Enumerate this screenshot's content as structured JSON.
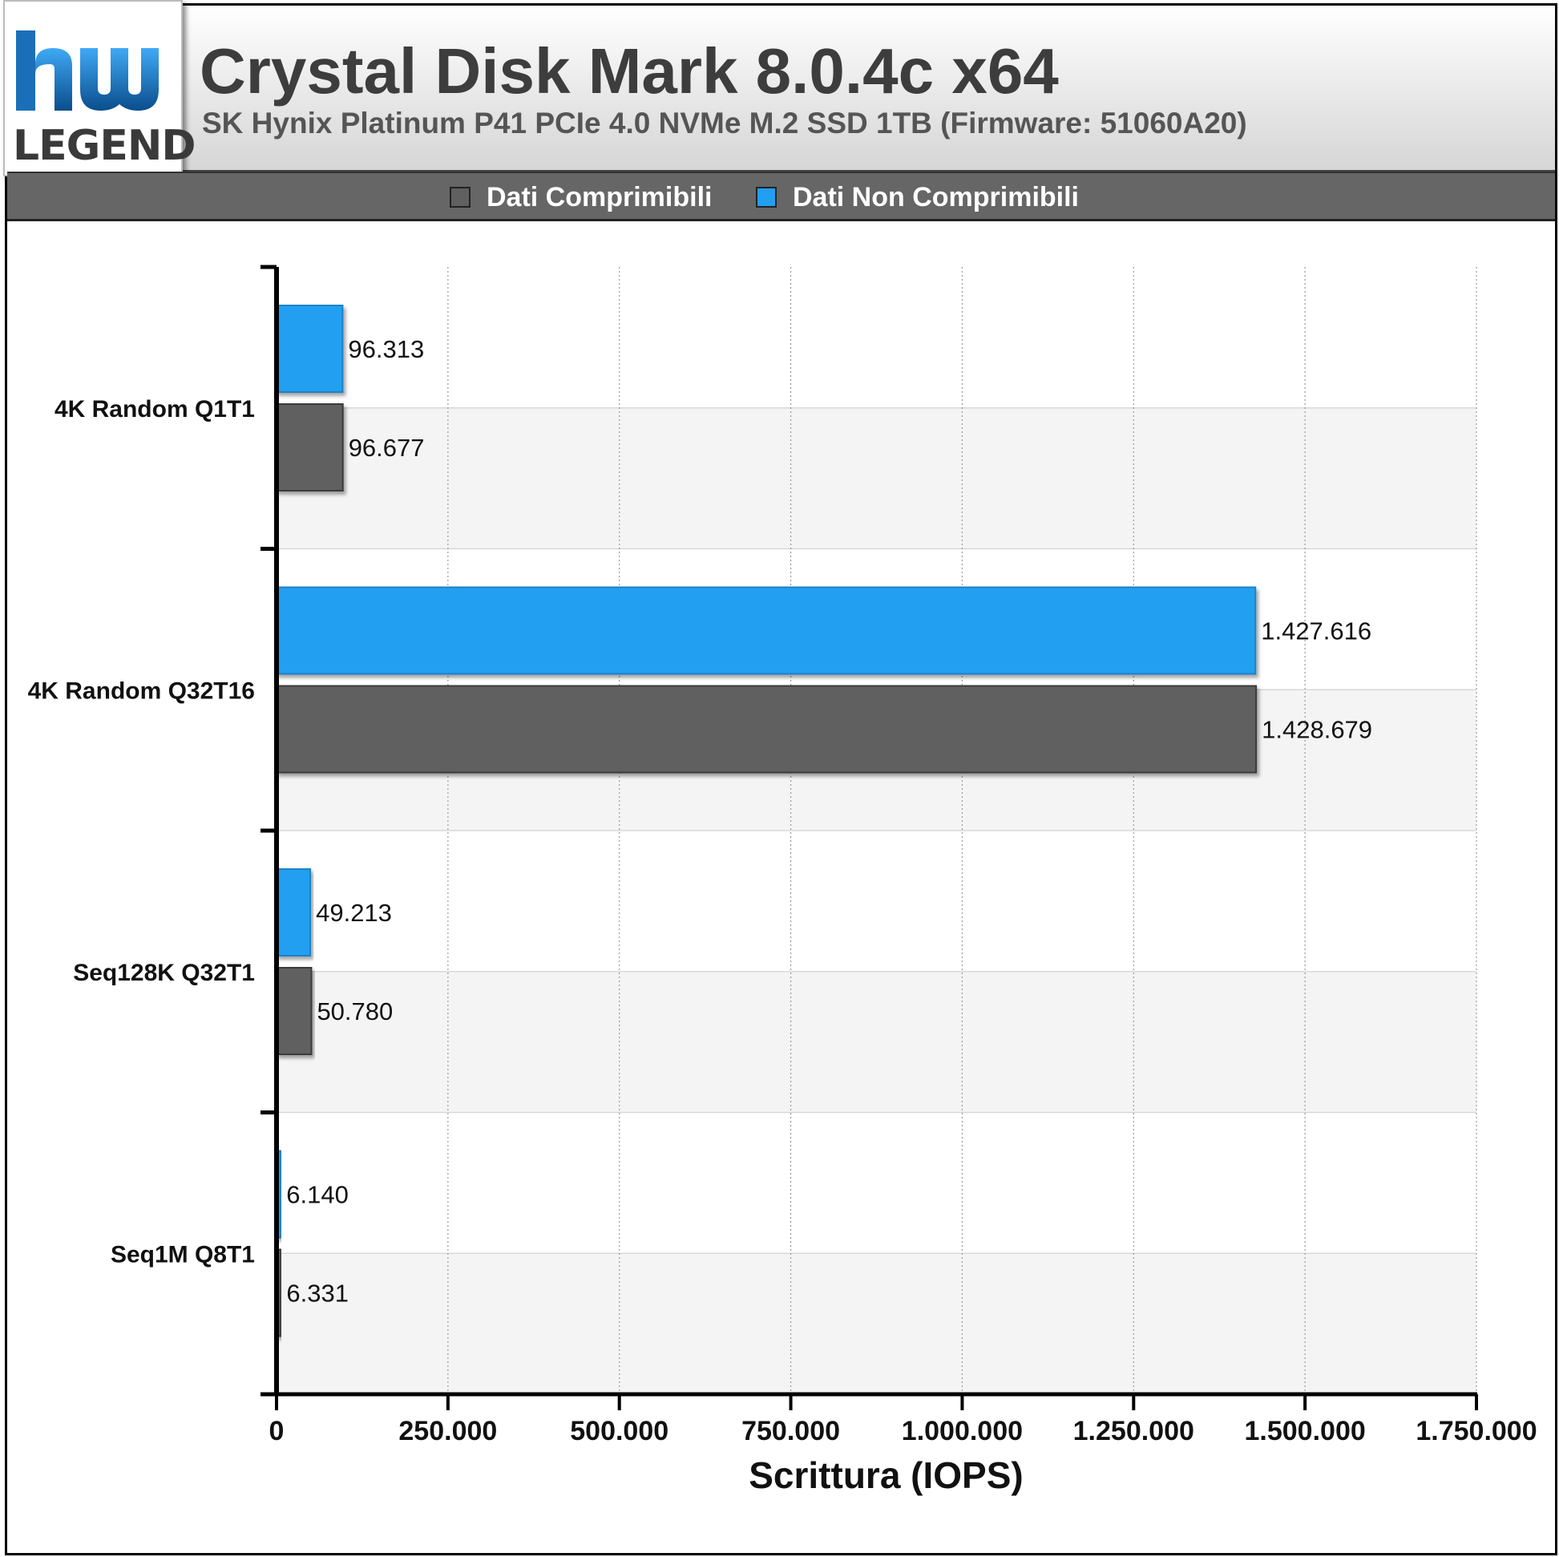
{
  "header": {
    "logo_text": "LEGEND",
    "title": "Crystal Disk Mark 8.0.4c x64",
    "subtitle": "SK Hynix Platinum P41 PCIe 4.0 NVMe M.2 SSD 1TB (Firmware: 51060A20)"
  },
  "legend": {
    "items": [
      {
        "label": "Dati Comprimibili",
        "color": "#606060"
      },
      {
        "label": "Dati Non Comprimibili",
        "color": "#219ff0"
      }
    ]
  },
  "chart_data": {
    "type": "bar",
    "orientation": "horizontal",
    "categories": [
      "4K Random Q1T1",
      "4K Random Q32T16",
      "Seq128K Q32T1",
      "Seq1M Q8T1"
    ],
    "series": [
      {
        "name": "Dati Non Comprimibili",
        "color": "#219ff0",
        "values": [
          96313,
          1427616,
          49213,
          6140
        ],
        "labels": [
          "96.313",
          "1.427.616",
          "49.213",
          "6.140"
        ]
      },
      {
        "name": "Dati Comprimibili",
        "color": "#606060",
        "values": [
          96677,
          1428679,
          50780,
          6331
        ],
        "labels": [
          "96.677",
          "1.428.679",
          "50.780",
          "6.331"
        ]
      }
    ],
    "xlim": [
      0,
      1750000
    ],
    "xticks": [
      0,
      250000,
      500000,
      750000,
      1000000,
      1250000,
      1500000,
      1750000
    ],
    "xtick_labels": [
      "0",
      "250.000",
      "500.000",
      "750.000",
      "1.000.000",
      "1.250.000",
      "1.500.000",
      "1.750.000"
    ],
    "xlabel": "Scrittura (IOPS)",
    "grid": "vertical dotted",
    "legend_position": "top"
  }
}
